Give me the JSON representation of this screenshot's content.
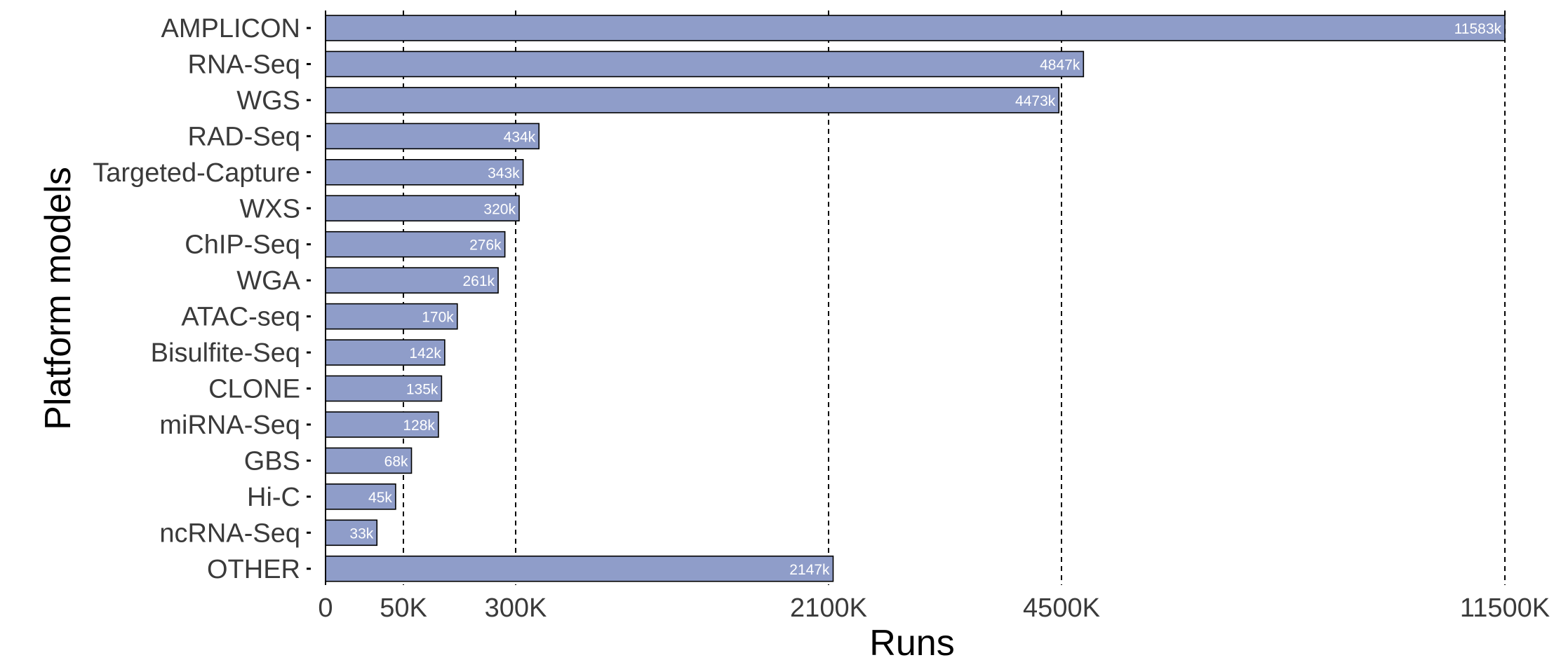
{
  "chart_data": {
    "type": "bar",
    "orientation": "horizontal",
    "xlabel": "Runs",
    "ylabel": "Platform models",
    "categories": [
      "AMPLICON",
      "RNA-Seq",
      "WGS",
      "RAD-Seq",
      "Targeted-Capture",
      "WXS",
      "ChIP-Seq",
      "WGA",
      "ATAC-seq",
      "Bisulfite-Seq",
      "CLONE",
      "miRNA-Seq",
      "GBS",
      "Hi-C",
      "ncRNA-Seq",
      "OTHER"
    ],
    "values": [
      11583,
      4847,
      4473,
      434,
      343,
      320,
      276,
      261,
      170,
      142,
      135,
      128,
      68,
      45,
      33,
      2147
    ],
    "value_labels": [
      "11583k",
      "4847k",
      "4473k",
      "434k",
      "343k",
      "320k",
      "276k",
      "261k",
      "170k",
      "142k",
      "135k",
      "128k",
      "68k",
      "45k",
      "33k",
      "2147k"
    ],
    "value_unit": "thousands of runs",
    "x_scale": "piecewise-linear through tick values",
    "x_ticks": [
      0,
      50,
      300,
      2100,
      4500,
      11500
    ],
    "x_tick_labels": [
      "0",
      "50K",
      "300K",
      "2100K",
      "4500K",
      "11500K"
    ],
    "x_gridlines_dashed": [
      50,
      300,
      2100,
      4500,
      11500
    ],
    "xlim": [
      0,
      11500
    ],
    "legend": "none",
    "colors": {
      "bar_fill": "#8f9dc9",
      "bar_stroke": "#000000",
      "bar_label": "#ffffff",
      "grid": "#000000",
      "axis": "#000000"
    }
  }
}
